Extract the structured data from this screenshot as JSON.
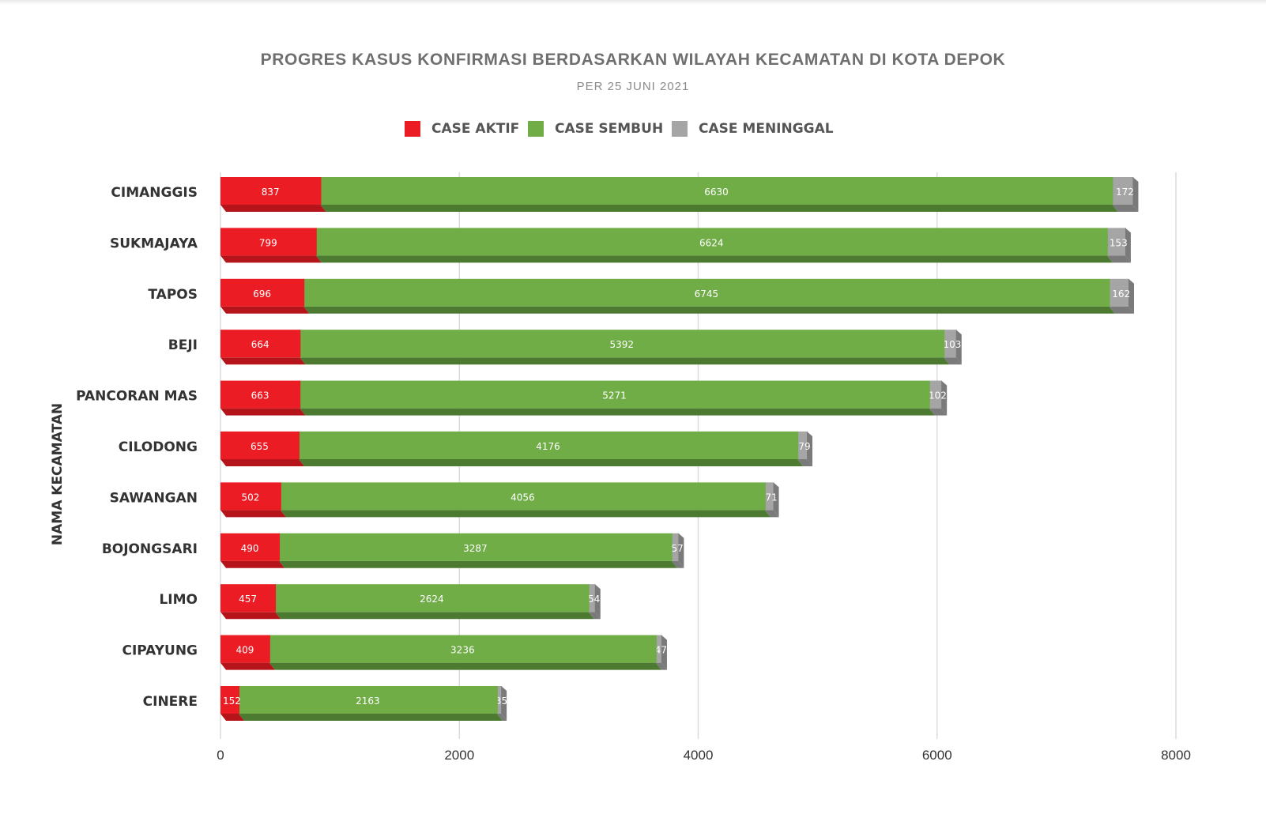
{
  "chart_data": {
    "type": "bar",
    "orientation": "horizontal",
    "stacked": true,
    "title": "PROGRES KASUS KONFIRMASI BERDASARKAN WILAYAH KECAMATAN DI KOTA DEPOK",
    "subtitle": "PER 25 JUNI 2021",
    "ylabel": "NAMA KECAMATAN",
    "xlabel": "",
    "xlim": [
      0,
      8000
    ],
    "xticks": [
      "0",
      "2000",
      "4000",
      "6000",
      "8000"
    ],
    "grid": true,
    "legend_position": "top",
    "categories": [
      "CIMANGGIS",
      "SUKMAJAYA",
      "TAPOS",
      "BEJI",
      "PANCORAN MAS",
      "CILODONG",
      "SAWANGAN",
      "BOJONGSARI",
      "LIMO",
      "CIPAYUNG",
      "CINERE"
    ],
    "series": [
      {
        "name": "CASE AKTIF",
        "color": "#ec1c24",
        "shade": "#b5141a",
        "values": [
          837,
          799,
          696,
          664,
          663,
          655,
          502,
          490,
          457,
          409,
          152
        ]
      },
      {
        "name": "CASE SEMBUH",
        "color": "#70ad47",
        "shade": "#4c7a30",
        "values": [
          6630,
          6624,
          6745,
          5392,
          5271,
          4176,
          4056,
          3287,
          2624,
          3236,
          2163
        ]
      },
      {
        "name": "CASE MENINGGAL",
        "color": "#a5a5a5",
        "shade": "#7a7a7a",
        "values": [
          172,
          153,
          162,
          103,
          102,
          79,
          71,
          57,
          54,
          47,
          35
        ]
      }
    ]
  }
}
